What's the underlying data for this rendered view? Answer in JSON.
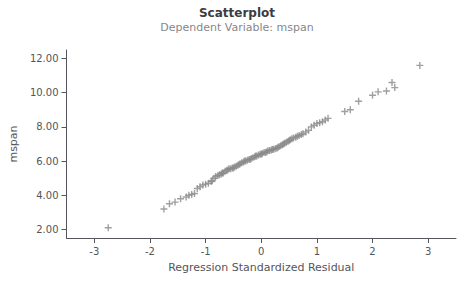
{
  "chart_data": {
    "type": "scatter",
    "title": "Scatterplot",
    "subtitle": "Dependent Variable: mspan",
    "x_label": "Regression Standardized Residual",
    "y_label": "mspan",
    "xlim": [
      -3.5,
      3.5
    ],
    "ylim": [
      1.5,
      12.5
    ],
    "xticks": [
      -3,
      -2,
      -1,
      0,
      1,
      2,
      3
    ],
    "yticks": [
      {
        "value": 2.0,
        "label": "2.00"
      },
      {
        "value": 4.0,
        "label": "4.00"
      },
      {
        "value": 6.0,
        "label": "6.00"
      },
      {
        "value": 8.0,
        "label": "8.00"
      },
      {
        "value": 10.0,
        "label": "10.00"
      },
      {
        "value": 12.0,
        "label": "12.00"
      }
    ],
    "marker": "plus",
    "color": "#888888",
    "grid": false,
    "x": [
      -2.75,
      -1.75,
      -1.65,
      -1.55,
      -1.45,
      -1.35,
      -1.3,
      -1.25,
      -1.2,
      -1.15,
      -1.1,
      -1.05,
      -1.0,
      -0.95,
      -0.9,
      -0.88,
      -0.85,
      -0.82,
      -0.78,
      -0.75,
      -0.72,
      -0.7,
      -0.68,
      -0.65,
      -0.62,
      -0.6,
      -0.58,
      -0.55,
      -0.52,
      -0.5,
      -0.48,
      -0.45,
      -0.42,
      -0.4,
      -0.38,
      -0.35,
      -0.32,
      -0.3,
      -0.28,
      -0.25,
      -0.22,
      -0.2,
      -0.18,
      -0.15,
      -0.12,
      -0.1,
      -0.08,
      -0.05,
      -0.02,
      0.0,
      0.02,
      0.05,
      0.08,
      0.1,
      0.12,
      0.15,
      0.18,
      0.2,
      0.22,
      0.25,
      0.28,
      0.3,
      0.32,
      0.35,
      0.38,
      0.4,
      0.42,
      0.45,
      0.48,
      0.5,
      0.52,
      0.55,
      0.58,
      0.62,
      0.65,
      0.68,
      0.72,
      0.75,
      0.8,
      0.85,
      0.9,
      0.95,
      1.0,
      1.05,
      1.1,
      1.15,
      1.2,
      1.5,
      1.6,
      1.75,
      2.0,
      2.1,
      2.25,
      2.35,
      2.4,
      2.85
    ],
    "values": [
      2.1,
      3.2,
      3.5,
      3.6,
      3.8,
      3.9,
      4.0,
      4.05,
      4.1,
      4.4,
      4.5,
      4.6,
      4.65,
      4.7,
      4.8,
      4.85,
      5.0,
      5.1,
      5.15,
      5.2,
      5.25,
      5.3,
      5.3,
      5.4,
      5.45,
      5.5,
      5.55,
      5.55,
      5.6,
      5.6,
      5.65,
      5.7,
      5.75,
      5.8,
      5.85,
      5.9,
      5.95,
      6.0,
      6.0,
      6.05,
      6.1,
      6.1,
      6.15,
      6.2,
      6.25,
      6.3,
      6.3,
      6.35,
      6.4,
      6.4,
      6.45,
      6.5,
      6.5,
      6.55,
      6.6,
      6.62,
      6.65,
      6.68,
      6.7,
      6.72,
      6.75,
      6.8,
      6.85,
      6.9,
      6.95,
      7.0,
      7.05,
      7.1,
      7.15,
      7.2,
      7.25,
      7.3,
      7.35,
      7.4,
      7.45,
      7.5,
      7.55,
      7.6,
      7.7,
      7.8,
      8.0,
      8.1,
      8.2,
      8.25,
      8.3,
      8.4,
      8.5,
      8.9,
      9.0,
      9.5,
      9.85,
      10.05,
      10.1,
      10.6,
      10.3,
      11.6
    ]
  }
}
